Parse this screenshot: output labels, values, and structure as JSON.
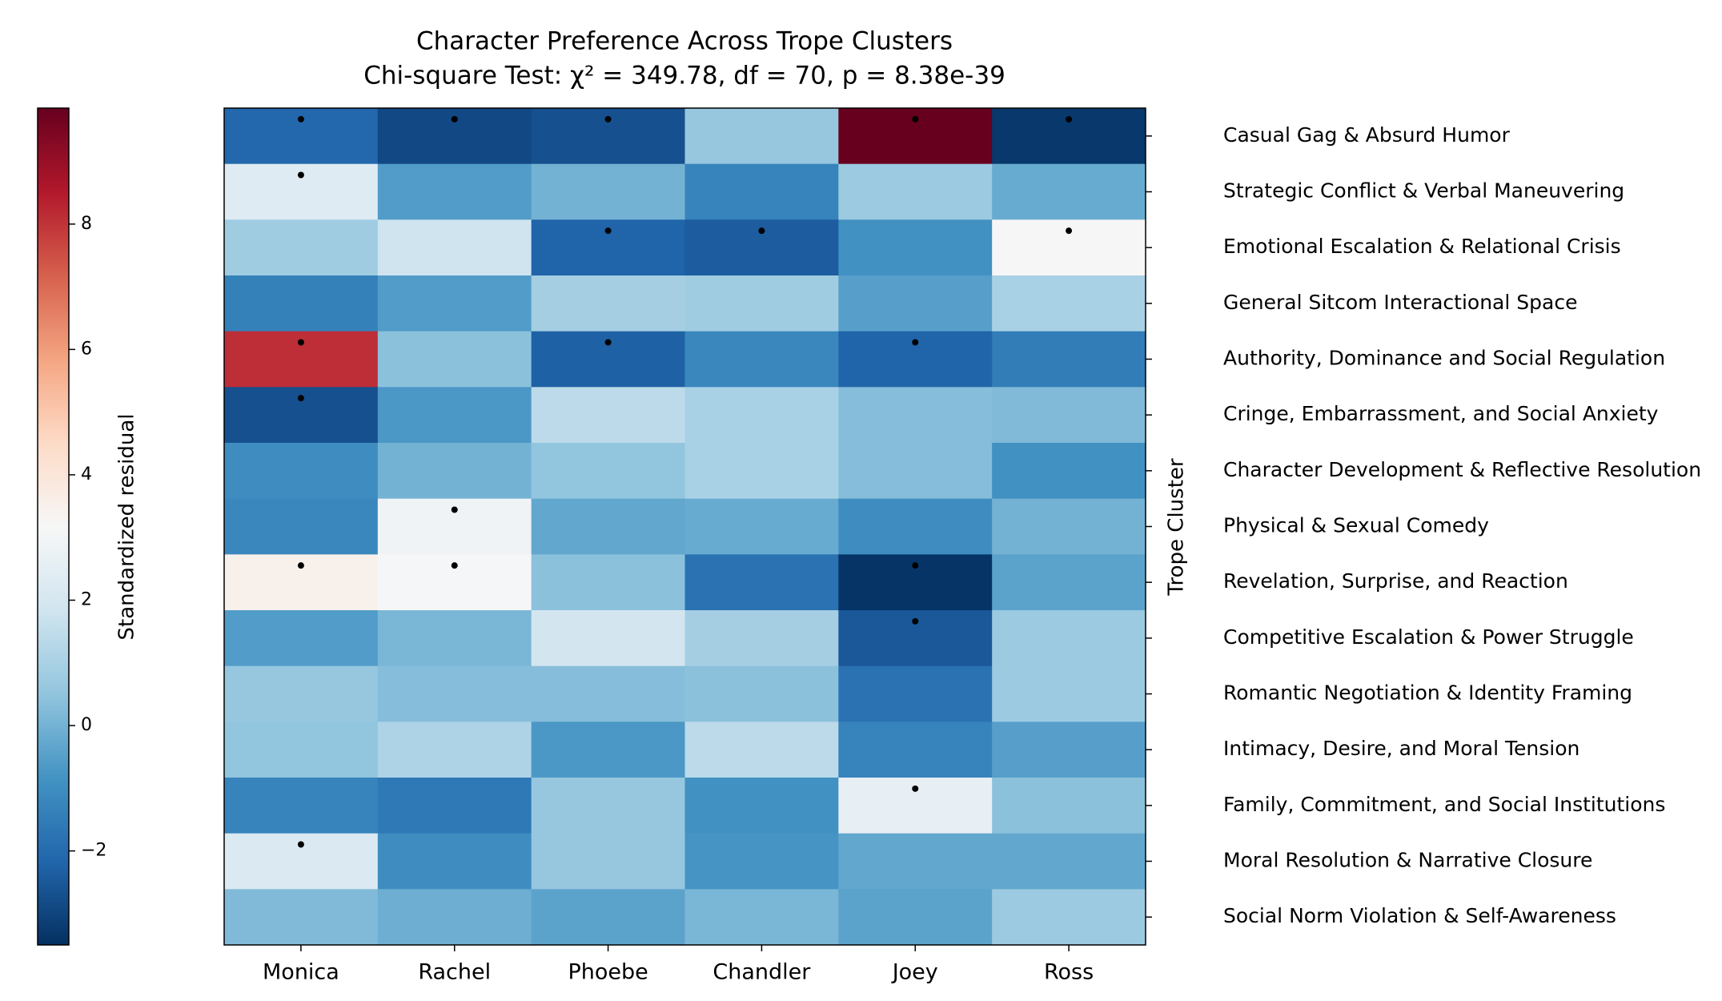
{
  "chart_data": {
    "type": "heatmap",
    "title": "Character Preference Across Trope Clusters",
    "subtitle": "Chi-square Test: χ² = 349.78, df = 70, p = 8.38e-39",
    "x_categories": [
      "Monica",
      "Rachel",
      "Phoebe",
      "Chandler",
      "Joey",
      "Ross"
    ],
    "y_categories": [
      "Casual Gag & Absurd Humor",
      "Strategic Conflict & Verbal Maneuvering",
      "Emotional Escalation & Relational Crisis",
      "General Sitcom Interactional Space",
      "Authority, Dominance and Social Regulation",
      "Cringe, Embarrassment, and Social Anxiety",
      "Character Development & Reflective Resolution",
      "Physical & Sexual Comedy",
      "Revelation, Surprise, and Reaction",
      "Competitive Escalation & Power Struggle",
      "Romantic Negotiation & Identity Framing",
      "Intimacy, Desire, and Moral Tension",
      "Family, Commitment, and Social Institutions",
      "Moral Resolution & Narrative Closure",
      "Social Norm Violation & Self-Awareness"
    ],
    "y_axis_label": "Trope Cluster",
    "values": [
      [
        -2.1,
        -2.9,
        -2.7,
        0.6,
        9.85,
        -3.3
      ],
      [
        2.3,
        -0.6,
        0.0,
        -1.3,
        0.7,
        -0.2
      ],
      [
        0.8,
        1.8,
        -2.2,
        -2.4,
        -0.9,
        3.2
      ],
      [
        -1.4,
        -0.6,
        0.9,
        0.8,
        -0.5,
        1.0
      ],
      [
        8.1,
        0.4,
        -2.3,
        -1.2,
        -2.2,
        -1.5
      ],
      [
        -2.7,
        -0.7,
        1.4,
        1.0,
        0.3,
        0.2
      ],
      [
        -1.0,
        0.0,
        0.5,
        1.0,
        0.3,
        -0.9
      ],
      [
        -1.2,
        2.9,
        -0.3,
        -0.2,
        -1.0,
        0.0
      ],
      [
        3.5,
        3.1,
        0.4,
        -1.8,
        -3.4,
        -0.4
      ],
      [
        -0.6,
        0.1,
        1.9,
        0.9,
        -2.5,
        0.7
      ],
      [
        0.6,
        0.3,
        0.3,
        0.4,
        -1.8,
        0.7
      ],
      [
        0.5,
        1.1,
        -0.7,
        1.4,
        -1.3,
        -0.5
      ],
      [
        -1.3,
        -1.6,
        0.6,
        -0.9,
        2.6,
        0.4
      ],
      [
        2.2,
        -1.0,
        0.6,
        -0.8,
        -0.3,
        -0.3
      ],
      [
        0.2,
        -0.1,
        -0.4,
        0.1,
        -0.4,
        0.7
      ]
    ],
    "dots": [
      [
        true,
        true,
        true,
        false,
        true,
        true
      ],
      [
        true,
        false,
        false,
        false,
        false,
        false
      ],
      [
        false,
        false,
        true,
        true,
        false,
        true
      ],
      [
        false,
        false,
        false,
        false,
        false,
        false
      ],
      [
        true,
        false,
        true,
        false,
        true,
        false
      ],
      [
        true,
        false,
        false,
        false,
        false,
        false
      ],
      [
        false,
        false,
        false,
        false,
        false,
        false
      ],
      [
        false,
        true,
        false,
        false,
        false,
        false
      ],
      [
        true,
        true,
        false,
        false,
        true,
        false
      ],
      [
        false,
        false,
        false,
        false,
        true,
        false
      ],
      [
        false,
        false,
        false,
        false,
        false,
        false
      ],
      [
        false,
        false,
        false,
        false,
        false,
        false
      ],
      [
        false,
        false,
        false,
        false,
        true,
        false
      ],
      [
        true,
        false,
        false,
        false,
        false,
        false
      ],
      [
        false,
        false,
        false,
        false,
        false,
        false
      ]
    ],
    "dot_color": "#000000",
    "colormap": [
      "#053061",
      "#2166ac",
      "#4393c3",
      "#92c5de",
      "#d1e5f0",
      "#f7f7f7",
      "#fddbc7",
      "#f4a582",
      "#d6604d",
      "#b2182b",
      "#67001f"
    ],
    "colorbar_label": "Standardized residual",
    "clim": [
      -3.5,
      9.85
    ],
    "colorbar_ticks": [
      {
        "value": -2,
        "label": "−2"
      },
      0,
      2,
      4,
      6,
      8
    ]
  }
}
